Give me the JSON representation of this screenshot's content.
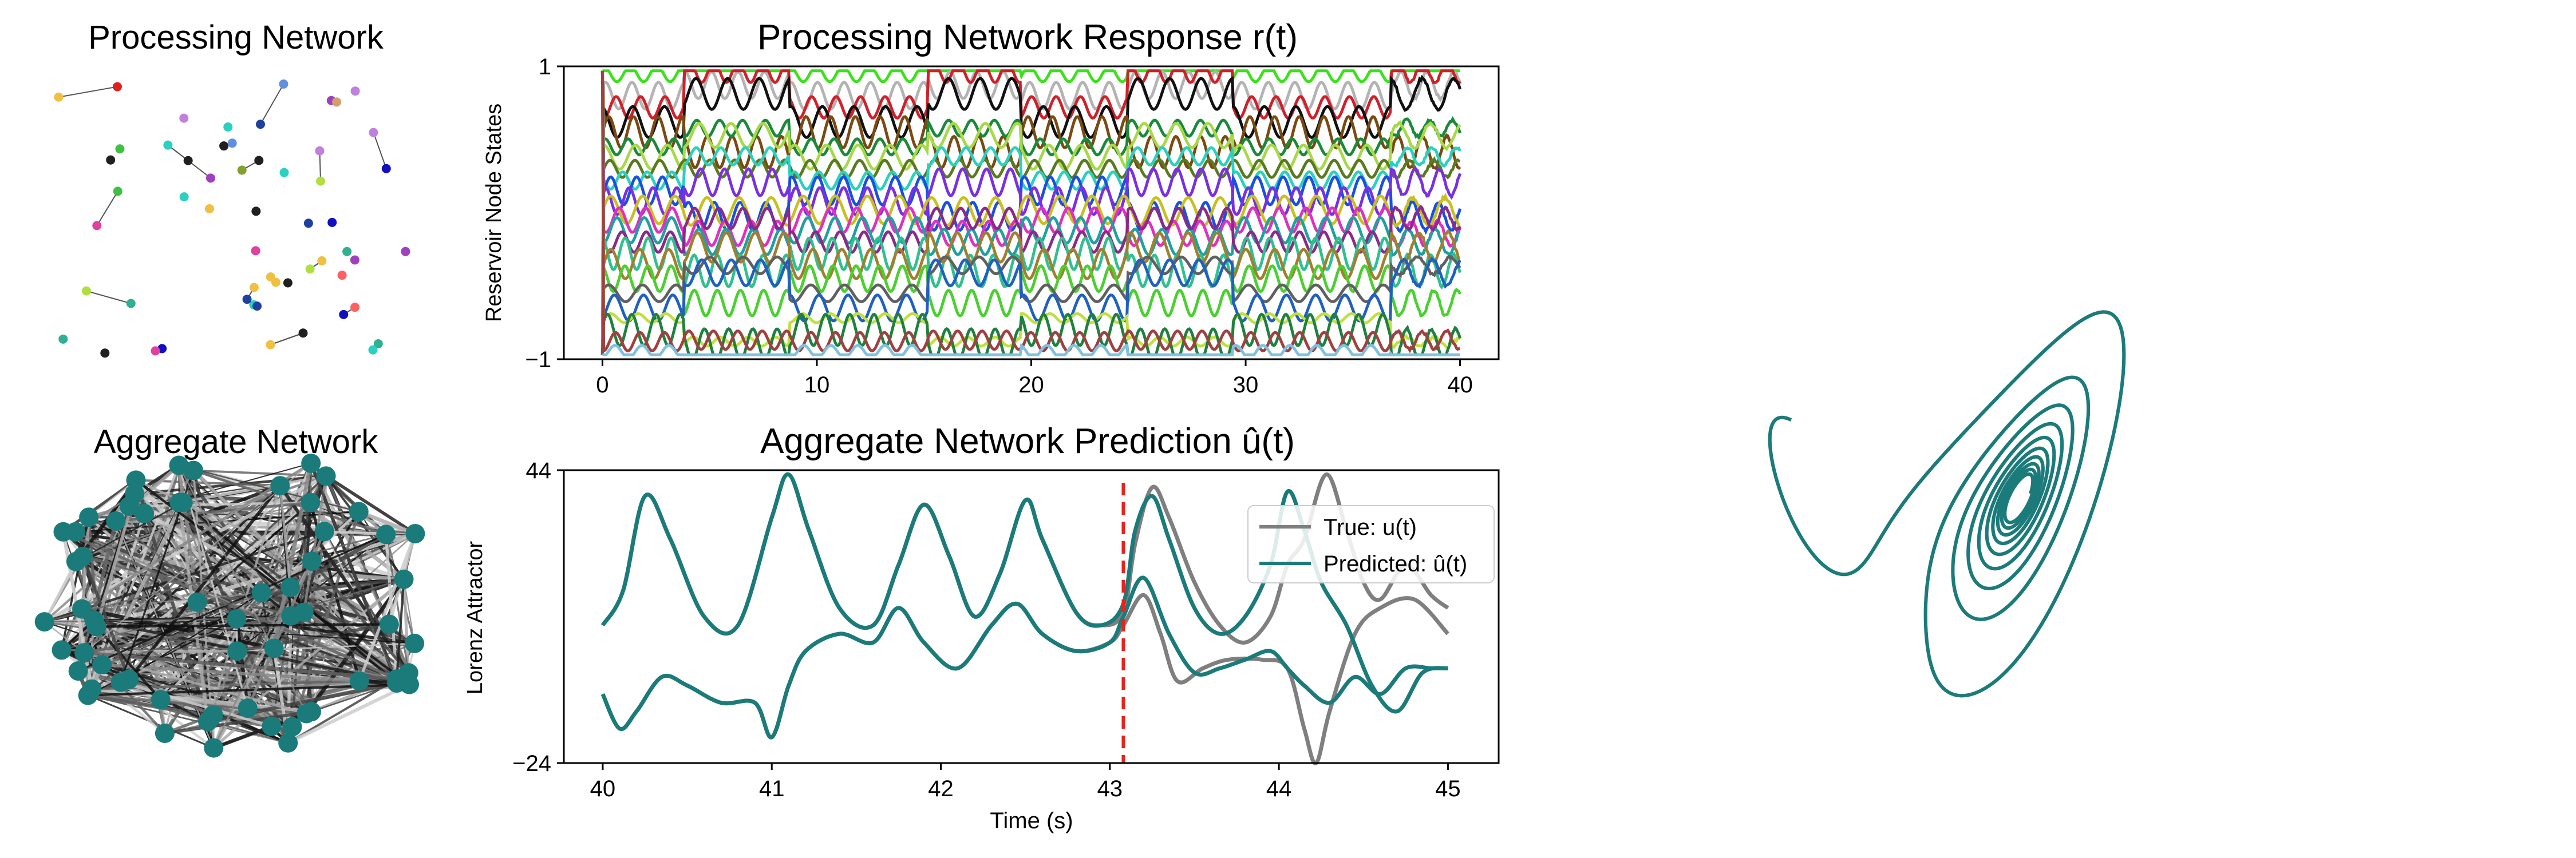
{
  "colors": {
    "teal": "#1b7b7b",
    "gray": "#7f7f7f",
    "red_dashed": "#e8231e",
    "edge_dark": "#222222"
  },
  "panels": {
    "processing_network": {
      "title": "Processing Network"
    },
    "aggregate_network": {
      "title": "Aggregate Network"
    }
  },
  "chart_data": [
    {
      "type": "line",
      "title": "Processing Network Response r(t)",
      "xlabel": "",
      "ylabel": "Reservoir Node States",
      "xlim": [
        -1.8,
        41.8
      ],
      "ylim": [
        -1,
        1
      ],
      "xticks": [
        0,
        10,
        20,
        30,
        40
      ],
      "xtick_labels": [
        "0",
        "10",
        "20",
        "30",
        "40"
      ],
      "yticks": [
        -1,
        1
      ],
      "ytick_labels": [
        "−1",
        "1"
      ],
      "regime_breaks": [
        0,
        3.8,
        8.7,
        15.2,
        19.5,
        24.5,
        29.4,
        36.8,
        40
      ],
      "series_levels": [
        0.95,
        0.8,
        0.72,
        0.62,
        0.55,
        0.45,
        0.38,
        0.3,
        0.22,
        0.15,
        0.08,
        0.02,
        -0.05,
        -0.12,
        -0.2,
        -0.28,
        -0.35,
        -0.45,
        -0.55,
        -0.65,
        -0.72,
        -0.8,
        -0.88,
        -0.95
      ],
      "series_colors": [
        "#3be21a",
        "#b3b3b3",
        "#d0202a",
        "#111111",
        "#7a4a12",
        "#1a8a3a",
        "#a8d84a",
        "#5a7a20",
        "#2ad0c0",
        "#1a50e0",
        "#7a30e0",
        "#c8c020",
        "#e030c0",
        "#20a0a0",
        "#8a2a8a",
        "#30c090",
        "#a08030",
        "#4ad030",
        "#606060",
        "#2060c0",
        "#c0e040",
        "#208040",
        "#a04040",
        "#80c0e0"
      ]
    },
    {
      "type": "line",
      "title": "Aggregate Network Prediction û(t)",
      "xlabel": "Time (s)",
      "ylabel": "Lorenz Attractor",
      "xlim": [
        39.77,
        45.3
      ],
      "ylim": [
        -24,
        44
      ],
      "xticks": [
        40,
        41,
        42,
        43,
        44,
        45
      ],
      "xtick_labels": [
        "40",
        "41",
        "42",
        "43",
        "44",
        "45"
      ],
      "yticks": [
        -24,
        44
      ],
      "ytick_labels": [
        "−24",
        "44"
      ],
      "vline_x": 43.08,
      "legend_position": "upper right",
      "legend": [
        {
          "label": "True: u(t)",
          "color": "#7f7f7f"
        },
        {
          "label": "Predicted: û(t)",
          "color": "#1b7b7b"
        }
      ],
      "series": [
        {
          "name": "True: u(t)",
          "color": "#7f7f7f",
          "x": [
            40,
            40.12,
            40.25,
            40.4,
            40.6,
            40.8,
            41.0,
            41.1,
            41.22,
            41.4,
            41.6,
            41.75,
            41.9,
            42.05,
            42.2,
            42.35,
            42.5,
            42.6,
            42.8,
            42.95,
            43.08,
            43.15,
            43.25,
            43.35,
            43.5,
            43.65,
            43.8,
            43.95,
            44.05,
            44.15,
            44.28,
            44.4,
            44.5,
            44.6,
            44.75,
            44.9,
            45.0
          ],
          "y": [
            8,
            16,
            38,
            28,
            10,
            8,
            33,
            43,
            30,
            12,
            8,
            22,
            36,
            24,
            10,
            20,
            37,
            28,
            11,
            8,
            11,
            27,
            40,
            33,
            18,
            8,
            4,
            10,
            22,
            28,
            43,
            30,
            18,
            14,
            22,
            15,
            12
          ]
        },
        {
          "name": "True: u(t)",
          "color": "#7f7f7f",
          "x": [
            40,
            40.1,
            40.2,
            40.35,
            40.5,
            40.7,
            40.9,
            41.0,
            41.1,
            41.2,
            41.4,
            41.6,
            41.75,
            41.9,
            42.1,
            42.3,
            42.45,
            42.6,
            42.8,
            43.0,
            43.08,
            43.2,
            43.3,
            43.4,
            43.55,
            43.7,
            43.9,
            44.05,
            44.15,
            44.22,
            44.3,
            44.45,
            44.6,
            44.8,
            45.0
          ],
          "y": [
            -8,
            -16,
            -12,
            -4,
            -6,
            -10,
            -10,
            -18,
            -6,
            2,
            6,
            4,
            12,
            4,
            -2,
            8,
            13,
            6,
            2,
            4,
            8,
            15,
            6,
            -5,
            -2,
            0,
            0,
            -2,
            -16,
            -24,
            -12,
            6,
            12,
            14,
            6
          ]
        },
        {
          "name": "Predicted: û(t)",
          "color": "#1b7b7b",
          "x": [
            40,
            40.12,
            40.25,
            40.4,
            40.6,
            40.8,
            41.0,
            41.1,
            41.22,
            41.4,
            41.6,
            41.75,
            41.9,
            42.05,
            42.2,
            42.35,
            42.5,
            42.6,
            42.8,
            42.95,
            43.08,
            43.15,
            43.25,
            43.35,
            43.5,
            43.65,
            43.8,
            43.95,
            44.05,
            44.15,
            44.25,
            44.4,
            44.55,
            44.7,
            44.85,
            45.0
          ],
          "y": [
            8,
            16,
            38,
            28,
            10,
            8,
            33,
            43,
            30,
            12,
            8,
            22,
            36,
            24,
            10,
            20,
            37,
            28,
            11,
            8,
            13,
            30,
            38,
            28,
            12,
            6,
            10,
            22,
            39,
            30,
            18,
            8,
            -6,
            -12,
            -3,
            -2
          ]
        },
        {
          "name": "Predicted: û(t)",
          "color": "#1b7b7b",
          "x": [
            40,
            40.1,
            40.2,
            40.35,
            40.5,
            40.7,
            40.9,
            41.0,
            41.1,
            41.2,
            41.4,
            41.6,
            41.75,
            41.9,
            42.1,
            42.3,
            42.45,
            42.6,
            42.8,
            43.0,
            43.08,
            43.2,
            43.35,
            43.5,
            43.65,
            43.8,
            43.95,
            44.05,
            44.15,
            44.3,
            44.45,
            44.6,
            44.75,
            44.9,
            45.0
          ],
          "y": [
            -8,
            -16,
            -12,
            -4,
            -6,
            -10,
            -10,
            -18,
            -6,
            2,
            6,
            4,
            12,
            4,
            -2,
            8,
            13,
            6,
            2,
            4,
            10,
            19,
            6,
            -3,
            -2,
            0,
            2,
            -2,
            -6,
            -10,
            -4,
            -8,
            -2,
            -2,
            -2
          ]
        }
      ]
    }
  ]
}
